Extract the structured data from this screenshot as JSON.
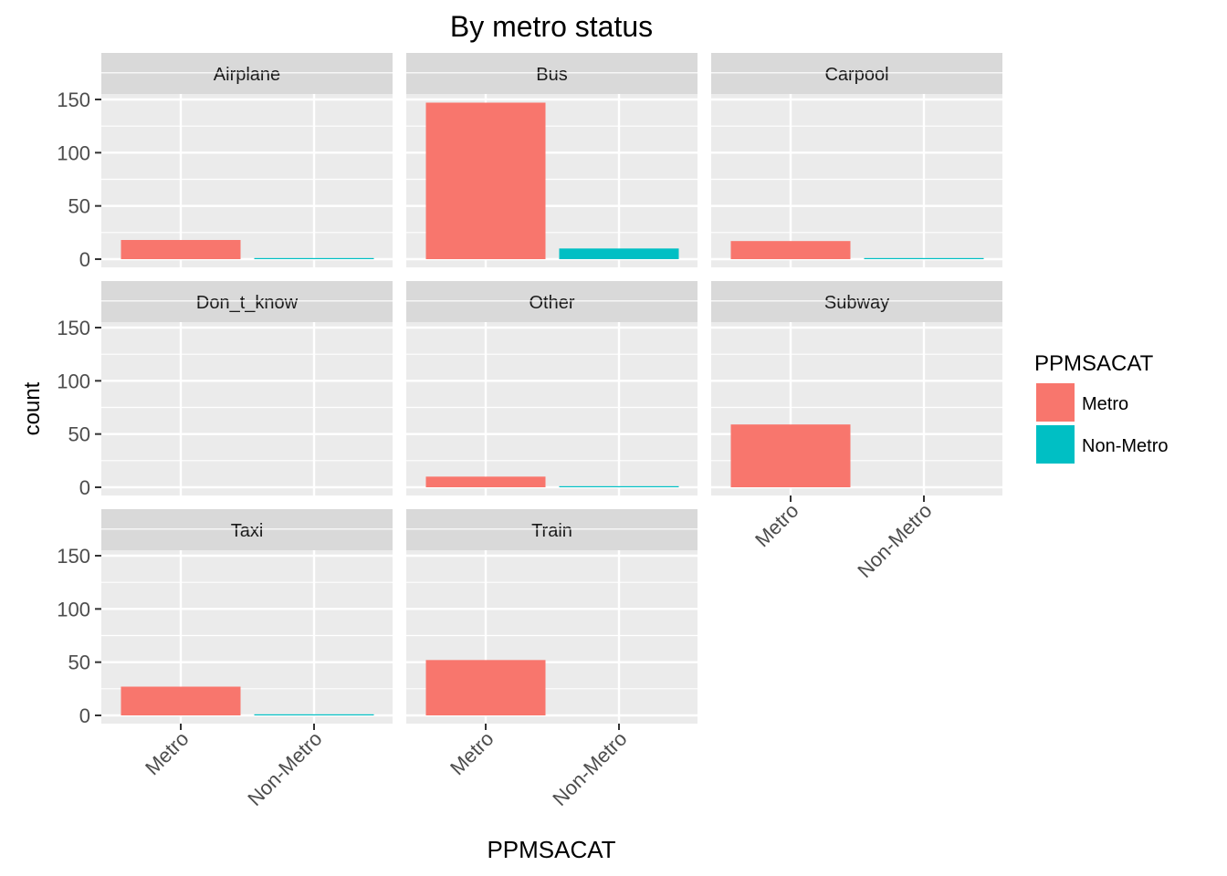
{
  "chart_data": {
    "type": "bar",
    "title": "By metro status",
    "xlabel": "PPMSACAT",
    "ylabel": "count",
    "categories": [
      "Metro",
      "Non-Metro"
    ],
    "ylim": [
      0,
      190
    ],
    "yticks": [
      0,
      50,
      100,
      150
    ],
    "grid": true,
    "legend": {
      "title": "PPMSACAT",
      "position": "right",
      "entries": [
        {
          "label": "Metro",
          "color": "#F8766D"
        },
        {
          "label": "Non-Metro",
          "color": "#00BFC4"
        }
      ]
    },
    "facets": [
      {
        "label": "Airplane",
        "values": [
          18,
          1
        ]
      },
      {
        "label": "Bus",
        "values": [
          147,
          10
        ]
      },
      {
        "label": "Carpool",
        "values": [
          17,
          1
        ]
      },
      {
        "label": "Don_t_know",
        "values": [
          0,
          0
        ]
      },
      {
        "label": "Other",
        "values": [
          10,
          1
        ]
      },
      {
        "label": "Subway",
        "values": [
          59,
          0
        ]
      },
      {
        "label": "Taxi",
        "values": [
          27,
          1
        ]
      },
      {
        "label": "Train",
        "values": [
          52,
          0
        ]
      }
    ]
  }
}
